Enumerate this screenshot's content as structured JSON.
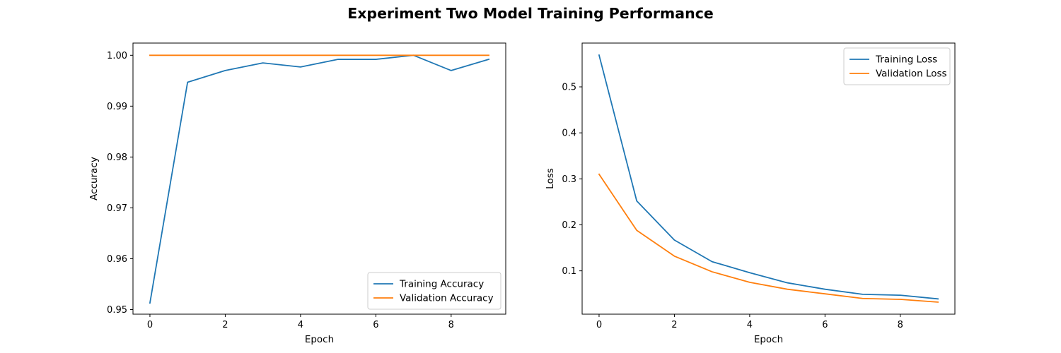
{
  "figure": {
    "title": "Experiment Two Model Training Performance"
  },
  "chart_data": [
    {
      "type": "line",
      "title": "",
      "xlabel": "Epoch",
      "ylabel": "Accuracy",
      "xlim": [
        -0.45,
        9.45
      ],
      "ylim": [
        0.9491,
        1.0024
      ],
      "xticks": [
        0,
        2,
        4,
        6,
        8
      ],
      "yticks": [
        0.95,
        0.96,
        0.97,
        0.98,
        0.99,
        1.0
      ],
      "ytick_decimals": 2,
      "grid": false,
      "legend_position": "lower-right",
      "x": [
        0,
        1,
        2,
        3,
        4,
        5,
        6,
        7,
        8,
        9
      ],
      "series": [
        {
          "name": "Training Accuracy",
          "color": "#1f77b4",
          "values": [
            0.9513,
            0.9947,
            0.997,
            0.9985,
            0.9977,
            0.9992,
            0.9992,
            1.0,
            0.997,
            0.9992
          ]
        },
        {
          "name": "Validation Accuracy",
          "color": "#ff7f0e",
          "values": [
            1.0,
            1.0,
            1.0,
            1.0,
            1.0,
            1.0,
            1.0,
            1.0,
            1.0,
            1.0
          ]
        }
      ]
    },
    {
      "type": "line",
      "title": "",
      "xlabel": "Epoch",
      "ylabel": "Loss",
      "xlim": [
        -0.45,
        9.45
      ],
      "ylim": [
        0.0058,
        0.5952
      ],
      "xticks": [
        0,
        2,
        4,
        6,
        8
      ],
      "yticks": [
        0.1,
        0.2,
        0.3,
        0.4,
        0.5
      ],
      "ytick_decimals": 1,
      "grid": false,
      "legend_position": "upper-right",
      "x": [
        0,
        1,
        2,
        3,
        4,
        5,
        6,
        7,
        8,
        9
      ],
      "series": [
        {
          "name": "Training Loss",
          "color": "#1f77b4",
          "values": [
            0.569,
            0.252,
            0.167,
            0.12,
            0.096,
            0.074,
            0.06,
            0.049,
            0.047,
            0.039
          ]
        },
        {
          "name": "Validation Loss",
          "color": "#ff7f0e",
          "values": [
            0.31,
            0.188,
            0.132,
            0.098,
            0.075,
            0.06,
            0.05,
            0.04,
            0.038,
            0.032
          ]
        }
      ]
    }
  ]
}
